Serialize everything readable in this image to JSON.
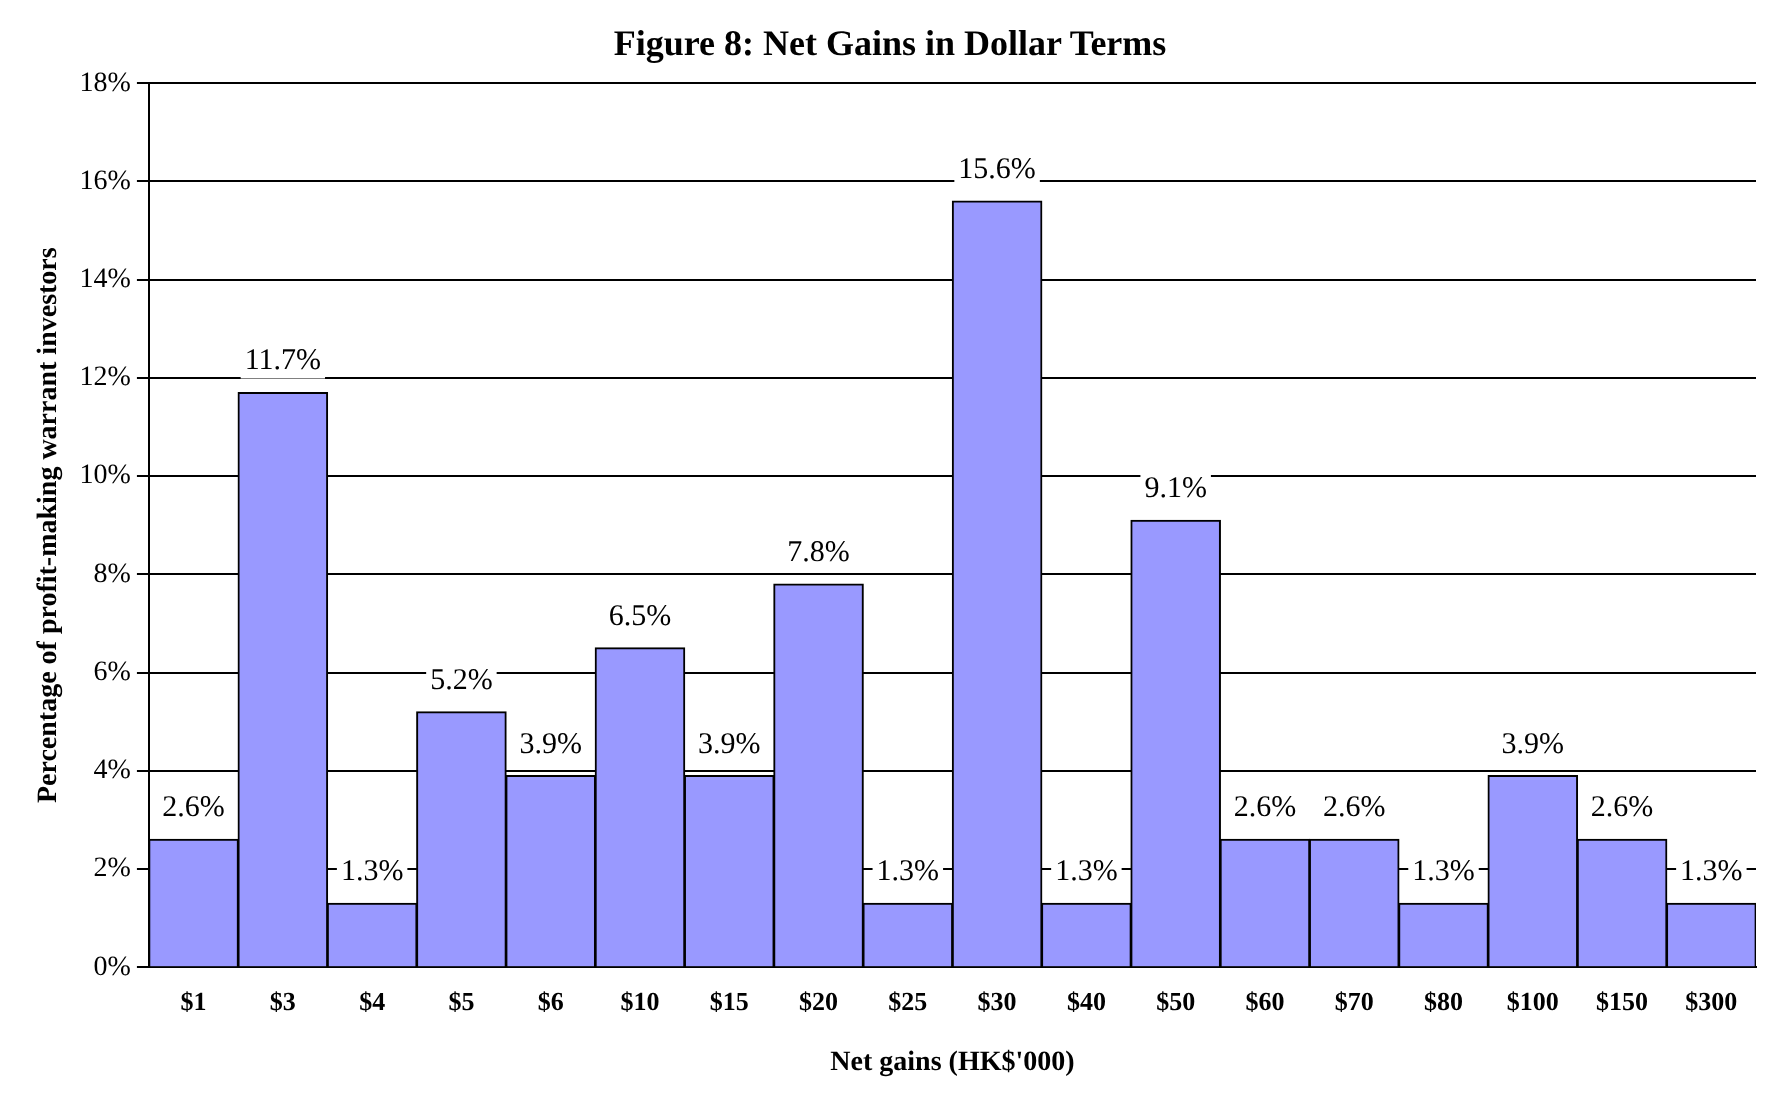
{
  "chart_data": {
    "type": "bar",
    "title": "Figure 8: Net Gains in Dollar Terms",
    "xlabel": "Net gains (HK$'000)",
    "ylabel": "Percentage of profit-making warrant investors",
    "categories": [
      "$1",
      "$3",
      "$4",
      "$5",
      "$6",
      "$10",
      "$15",
      "$20",
      "$25",
      "$30",
      "$40",
      "$50",
      "$60",
      "$70",
      "$80",
      "$100",
      "$150",
      "$300"
    ],
    "values": [
      2.6,
      11.7,
      1.3,
      5.2,
      3.9,
      6.5,
      3.9,
      7.8,
      1.3,
      15.6,
      1.3,
      9.1,
      2.6,
      2.6,
      1.3,
      3.9,
      2.6,
      1.3
    ],
    "value_labels": [
      "2.6%",
      "11.7%",
      "1.3%",
      "5.2%",
      "3.9%",
      "6.5%",
      "3.9%",
      "7.8%",
      "1.3%",
      "15.6%",
      "1.3%",
      "9.1%",
      "2.6%",
      "2.6%",
      "1.3%",
      "3.9%",
      "2.6%",
      "1.3%"
    ],
    "color": "#9999ff",
    "ylim": [
      0,
      18
    ],
    "yticks": [
      {
        "value": 0,
        "label": "0%"
      },
      {
        "value": 2,
        "label": "2%"
      },
      {
        "value": 4,
        "label": "4%"
      },
      {
        "value": 6,
        "label": "6%"
      },
      {
        "value": 8,
        "label": "8%"
      },
      {
        "value": 10,
        "label": "10%"
      },
      {
        "value": 12,
        "label": "12%"
      },
      {
        "value": 14,
        "label": "14%"
      },
      {
        "value": 16,
        "label": "16%"
      },
      {
        "value": 18,
        "label": "18%"
      }
    ],
    "grid": "y",
    "legend": false
  }
}
